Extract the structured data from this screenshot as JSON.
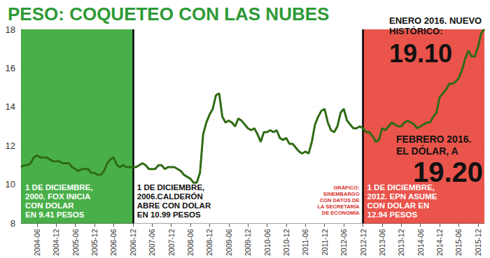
{
  "chart_data": {
    "type": "line",
    "title": "PESO: COQUETEO CON LAS NUBES",
    "categories": [
      null,
      null,
      null,
      null,
      null,
      "2004-06",
      null,
      null,
      null,
      null,
      null,
      "2004-12",
      null,
      null,
      null,
      null,
      null,
      "2005-06",
      null,
      null,
      null,
      null,
      null,
      "2005-12",
      null,
      null,
      null,
      null,
      null,
      "2006-06",
      null,
      null,
      null,
      null,
      null,
      "2006-12",
      null,
      null,
      null,
      null,
      null,
      "2007-06",
      null,
      null,
      null,
      null,
      null,
      "2007-12",
      null,
      null,
      null,
      null,
      null,
      "2008-06",
      null,
      null,
      null,
      null,
      null,
      "2008-12",
      null,
      null,
      null,
      null,
      null,
      "2009-06",
      null,
      null,
      null,
      null,
      null,
      "2009-12",
      null,
      null,
      null,
      null,
      null,
      "2010-06",
      null,
      null,
      null,
      null,
      null,
      "2010-12",
      null,
      null,
      null,
      null,
      null,
      "2011-06",
      null,
      null,
      null,
      null,
      null,
      "2011-12",
      null,
      null,
      null,
      null,
      null,
      "2012-06",
      null,
      null,
      null,
      null,
      null,
      "2012-12",
      null,
      null,
      null,
      null,
      null,
      "2013-06",
      null,
      null,
      null,
      null,
      null,
      "2013-12",
      null,
      null,
      null,
      null,
      null,
      "2014-06",
      null,
      null,
      null,
      null,
      null,
      "2014-12",
      null,
      null,
      null,
      null,
      null,
      "2015-06",
      null,
      null,
      null,
      null,
      null,
      "2015-12",
      null,
      null
    ],
    "values": [
      10.9,
      11.0,
      11.0,
      11.1,
      11.4,
      11.5,
      11.4,
      11.4,
      11.4,
      11.3,
      11.2,
      11.2,
      11.2,
      11.1,
      11.1,
      11.1,
      10.9,
      10.8,
      10.7,
      10.8,
      10.8,
      10.8,
      10.6,
      10.6,
      10.5,
      10.5,
      10.7,
      11.1,
      11.3,
      11.4,
      11.0,
      10.9,
      11.0,
      10.9,
      10.9,
      10.9,
      10.9,
      11.0,
      11.1,
      11.0,
      10.8,
      10.8,
      10.8,
      11.0,
      11.0,
      10.8,
      10.9,
      10.9,
      10.9,
      10.8,
      10.7,
      10.5,
      10.4,
      10.3,
      10.1,
      10.1,
      10.6,
      12.6,
      13.2,
      13.6,
      13.9,
      14.6,
      14.7,
      13.5,
      13.2,
      13.3,
      13.2,
      13.0,
      13.4,
      13.3,
      13.1,
      12.9,
      12.8,
      12.9,
      12.6,
      12.2,
      12.7,
      12.7,
      12.8,
      12.7,
      12.8,
      12.4,
      12.3,
      12.4,
      12.1,
      12.1,
      11.9,
      11.7,
      11.6,
      11.7,
      11.6,
      12.2,
      13.1,
      13.5,
      13.8,
      13.9,
      13.2,
      12.8,
      12.7,
      13.0,
      13.7,
      13.9,
      13.3,
      13.1,
      12.9,
      12.9,
      13.0,
      12.9,
      12.7,
      12.7,
      12.5,
      12.2,
      12.3,
      12.9,
      12.8,
      13.0,
      13.2,
      13.1,
      13.0,
      13.0,
      13.2,
      13.3,
      13.2,
      13.1,
      12.9,
      13.0,
      13.1,
      13.2,
      13.2,
      13.5,
      13.7,
      14.5,
      14.7,
      14.9,
      15.2,
      15.2,
      15.3,
      15.5,
      15.9,
      16.5,
      16.9,
      16.6,
      16.6,
      17.1,
      17.8,
      18.0
    ],
    "color": "#2f6b14",
    "ylim": [
      8,
      18
    ],
    "yticks": [
      8,
      10,
      12,
      14,
      16,
      18
    ],
    "grid": true,
    "periods": [
      {
        "end": "2006-12",
        "color": "#3aa93a",
        "text": "1 DE DICIEMBRE,\n2000. FOX INICIA\nCON DOLAR\nEN 9.41 PESOS"
      },
      {
        "end": "2012-12",
        "color": "#ffffff",
        "text": "1 DE DICIEMBRE,\n2006.CALDERÓN\nABRE CON DOLAR\nEN 10.99 PESOS"
      },
      {
        "end": null,
        "color": "#e8453c",
        "text": "1 DE DICIEMBRE,\n2012. EPN ASUME\nCON DOLAR EN\n12.94 PESOS"
      }
    ],
    "source": "GRÁFICO:\nSINEMBARGO\nCON DATOS DE\nLA SECRETARÍA\nDE ECONOMÍA",
    "annotations": [
      {
        "text": "ENERO 2016. NUEVO\nHISTÓRICO:"
      },
      {
        "text": "19.10"
      },
      {
        "text": "FEBRERO 2016.\nEL DÓLAR, A"
      },
      {
        "text": "19.20"
      }
    ]
  }
}
